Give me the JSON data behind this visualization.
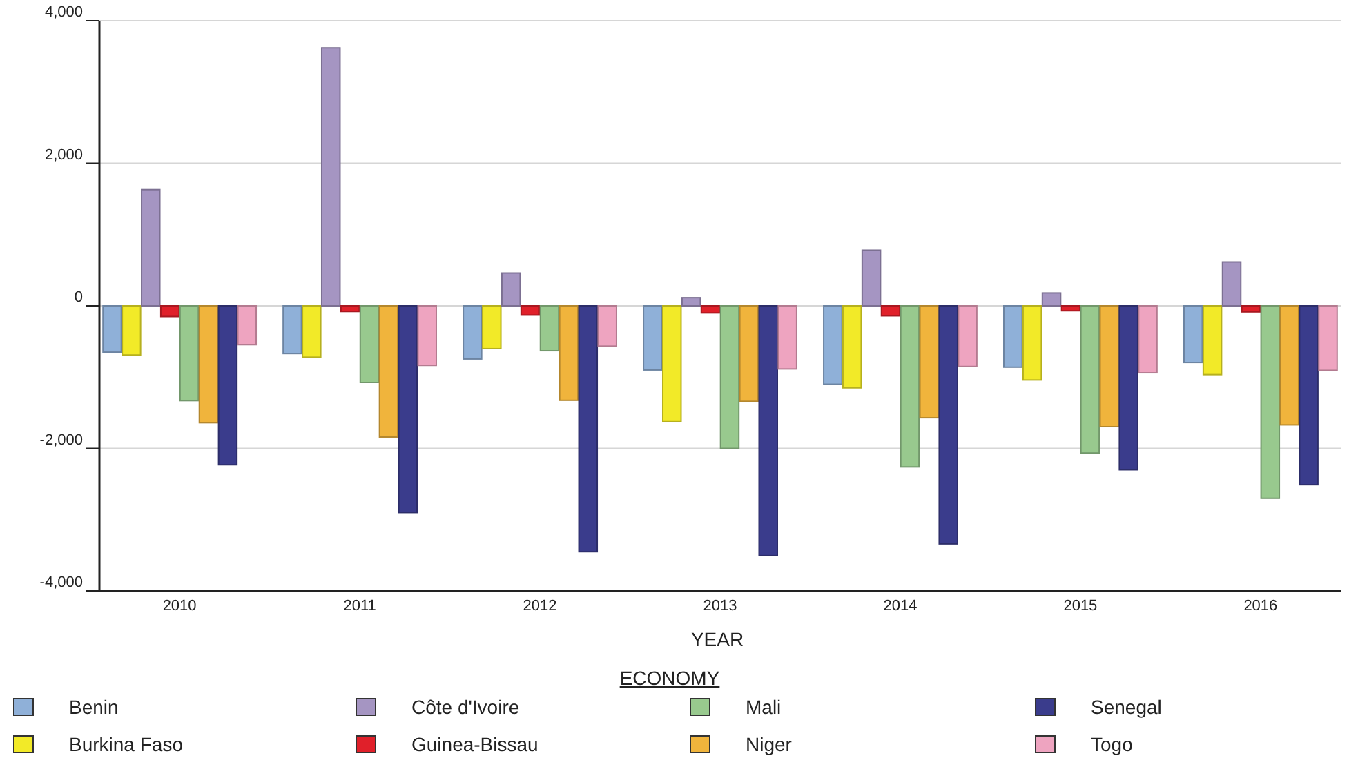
{
  "chart_data": {
    "type": "bar",
    "xlabel": "YEAR",
    "legend_title": "ECONOMY",
    "categories": [
      "2010",
      "2011",
      "2012",
      "2013",
      "2014",
      "2015",
      "2016"
    ],
    "series": [
      {
        "name": "Benin",
        "color": "#8fb0d8",
        "values": [
          -650,
          -670,
          -745,
          -900,
          -1100,
          -860,
          -795
        ]
      },
      {
        "name": "Burkina Faso",
        "color": "#f2ea28",
        "values": [
          -690,
          -720,
          -600,
          -1625,
          -1150,
          -1040,
          -965
        ]
      },
      {
        "name": "Côte d'Ivoire",
        "color": "#a595c2",
        "values": [
          1630,
          3620,
          460,
          115,
          780,
          180,
          615
        ]
      },
      {
        "name": "Guinea-Bissau",
        "color": "#e0202a",
        "values": [
          -150,
          -80,
          -130,
          -100,
          -140,
          -70,
          -85
        ]
      },
      {
        "name": "Mali",
        "color": "#98c98e",
        "values": [
          -1330,
          -1075,
          -630,
          -2000,
          -2260,
          -2065,
          -2700
        ]
      },
      {
        "name": "Niger",
        "color": "#f0b43c",
        "values": [
          -1640,
          -1840,
          -1325,
          -1340,
          -1570,
          -1695,
          -1670
        ]
      },
      {
        "name": "Senegal",
        "color": "#3a3c8c",
        "values": [
          -2230,
          -2900,
          -3450,
          -3505,
          -3340,
          -2300,
          -2510
        ]
      },
      {
        "name": "Togo",
        "color": "#eea4c0",
        "values": [
          -545,
          -835,
          -565,
          -885,
          -850,
          -940,
          -905
        ]
      }
    ],
    "ylim": [
      -4000,
      4000
    ],
    "yticks": [
      {
        "value": -4000,
        "label": "-4,000"
      },
      {
        "value": -2000,
        "label": "-2,000"
      },
      0,
      {
        "value": 2000,
        "label": "2,000"
      },
      {
        "value": 4000,
        "label": "4,000"
      }
    ],
    "grid": "y",
    "legend": "bottom"
  }
}
